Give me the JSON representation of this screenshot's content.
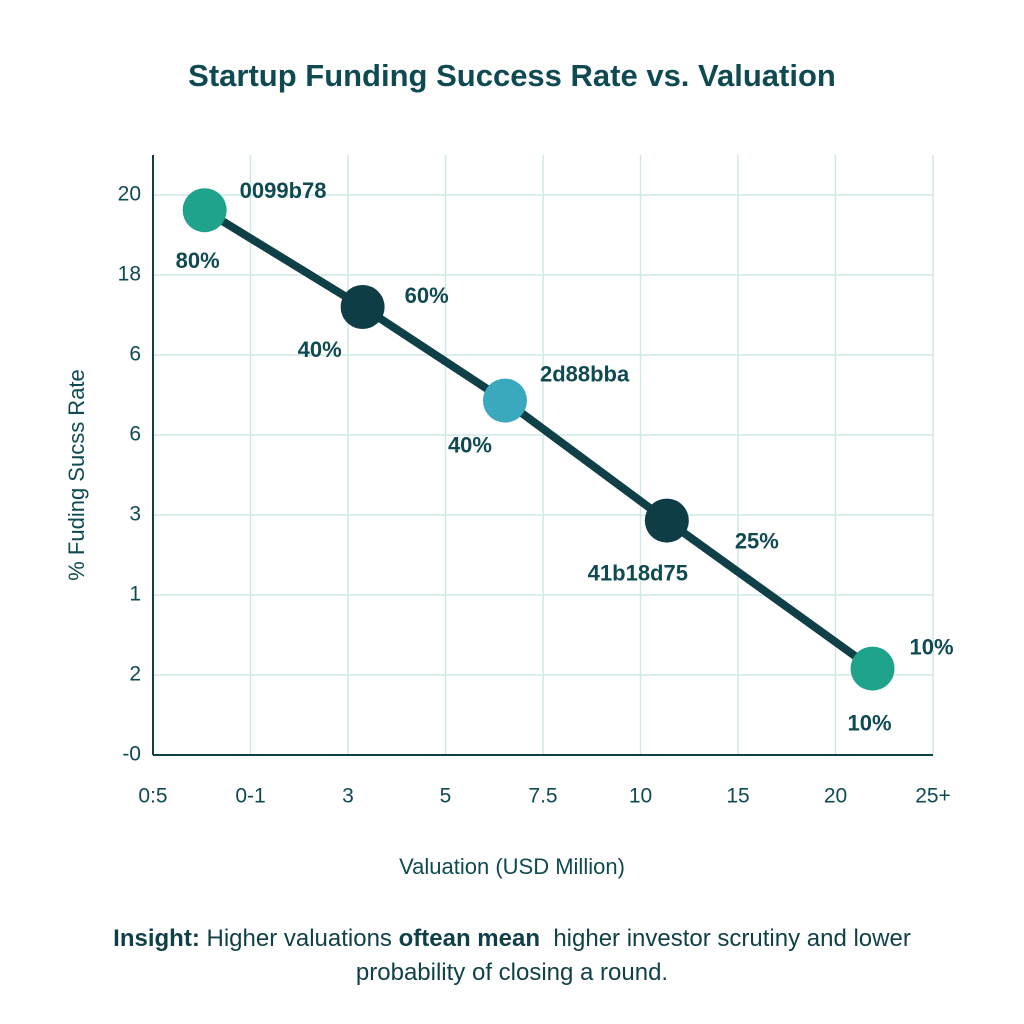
{
  "chart_data": {
    "type": "line",
    "title": "Startup Funding Success Rate vs. Valuation",
    "x_label": "Valuation (USD Million)",
    "y_label": "% Fuding Sucss Rate",
    "xlim": [
      0,
      8
    ],
    "ylim": [
      0,
      7.5
    ],
    "xticks": [
      {
        "value": 0,
        "label": "0:5"
      },
      {
        "value": 1,
        "label": "0-1"
      },
      {
        "value": 2,
        "label": "3"
      },
      {
        "value": 3,
        "label": "5"
      },
      {
        "value": 4,
        "label": "7.5"
      },
      {
        "value": 5,
        "label": "10"
      },
      {
        "value": 6,
        "label": "15"
      },
      {
        "value": 7,
        "label": "20"
      },
      {
        "value": 8,
        "label": "25+"
      }
    ],
    "yticks": [
      {
        "value": 0,
        "label": "-0"
      },
      {
        "value": 1,
        "label": "2"
      },
      {
        "value": 2,
        "label": "1"
      },
      {
        "value": 3,
        "label": "3"
      },
      {
        "value": 4,
        "label": "6"
      },
      {
        "value": 5,
        "label": "6"
      },
      {
        "value": 6,
        "label": "18"
      },
      {
        "value": 7,
        "label": "20"
      }
    ],
    "grid": true,
    "line_color": "#0f3f47",
    "series": [
      {
        "x": [
          0.53,
          2.15,
          3.61,
          5.27,
          7.38
        ],
        "values": [
          6.81,
          5.6,
          4.43,
          2.93,
          1.08
        ],
        "colors": [
          "#1fa38a",
          "#0e3d45",
          "#3aa9be",
          "#0e3d45",
          "#1fa38a"
        ]
      }
    ],
    "point_labels": [
      [
        "0099b78",
        "80%"
      ],
      [
        "60%",
        "40%"
      ],
      [
        "2d88bba",
        "40%"
      ],
      [
        "25%",
        "41b18d75"
      ],
      [
        "10%",
        "10%"
      ]
    ],
    "insight": [
      {
        "text": "Insight:",
        "bold": true
      },
      {
        "text": " Higher valuations ",
        "bold": false
      },
      {
        "text": "oftean mean",
        "bold": true
      },
      {
        "text": "  higher investor scrutiny and lower probability of closing a round.",
        "bold": false
      }
    ]
  }
}
